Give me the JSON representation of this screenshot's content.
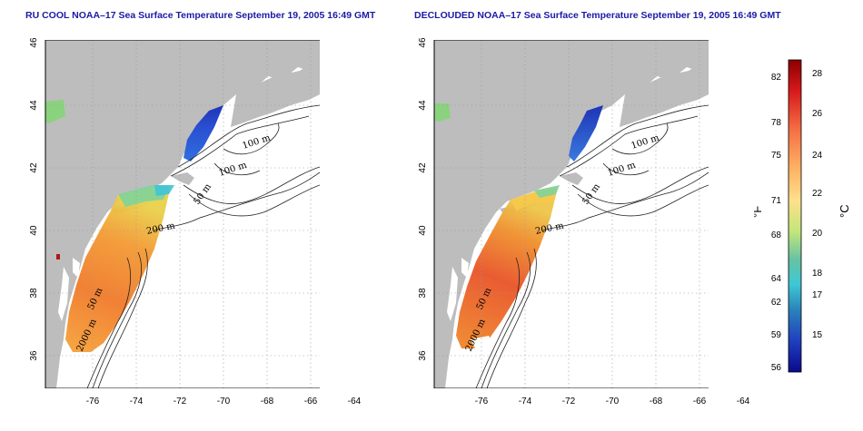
{
  "panels": [
    {
      "title": "RU COOL NOAA–17 Sea Surface Temperature September 19, 2005 16:49 GMT"
    },
    {
      "title": "DECLOUDED NOAA–17 Sea Surface Temperature September 19, 2005 16:49 GMT"
    }
  ],
  "map": {
    "lon_ticks": [
      "-76",
      "-74",
      "-72",
      "-70",
      "-68",
      "-66",
      "-64"
    ],
    "lat_ticks": [
      "46",
      "44",
      "42",
      "40",
      "38",
      "36"
    ],
    "isobath_labels": [
      "100 m",
      "100 m",
      "50 m",
      "200 m",
      "50 m",
      "2000 m"
    ],
    "colors": {
      "land": "#bdbdbd",
      "ocean": "#ffffff",
      "grid": "#9a9a9a",
      "contour": "#222222"
    }
  },
  "colorbar": {
    "fahrenheit_label": "°F",
    "celsius_label": "°C",
    "fahrenheit_ticks": [
      "82",
      "78",
      "75",
      "71",
      "68",
      "64",
      "62",
      "59",
      "56"
    ],
    "celsius_ticks": [
      "28",
      "26",
      "24",
      "22",
      "20",
      "18",
      "17",
      "15"
    ],
    "gradient": [
      "#8b0000",
      "#d7191c",
      "#f46d43",
      "#fdae61",
      "#fee08b",
      "#d9ef8b",
      "#66c2a5",
      "#3ec7d4",
      "#2b83ba",
      "#1f3fbf",
      "#0a0a8a"
    ]
  }
}
